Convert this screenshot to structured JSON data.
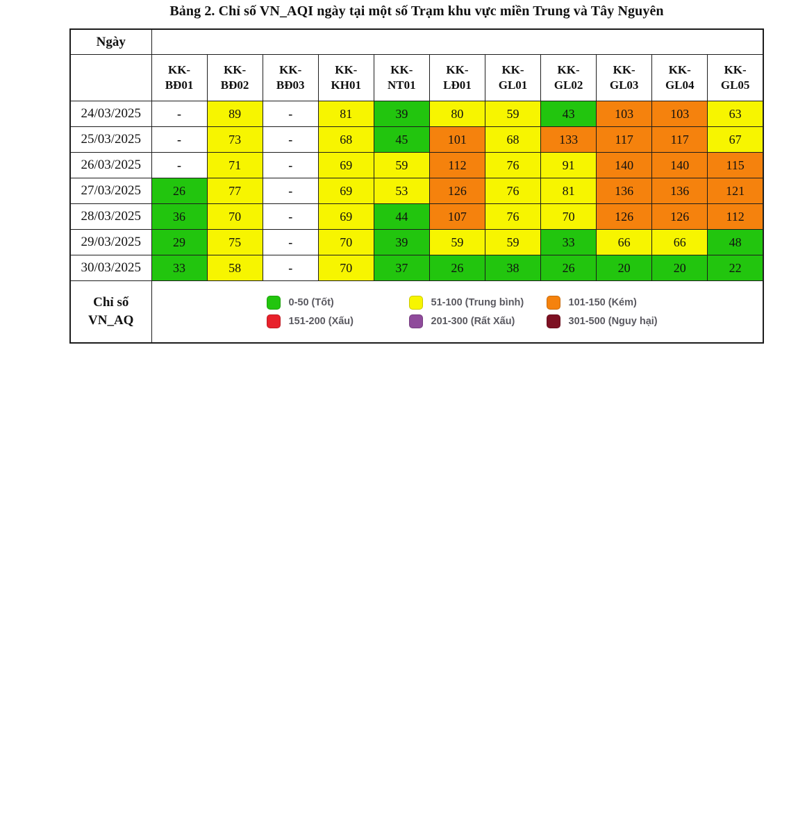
{
  "title": "Bảng 2. Chỉ số VN_AQI ngày tại một số Trạm khu vực miền Trung và Tây Nguyên",
  "header": {
    "date_label": "Ngày"
  },
  "stations": [
    "KK-\nBĐ01",
    "KK-\nBĐ02",
    "KK-\nBĐ03",
    "KK-\nKH01",
    "KK-\nNT01",
    "KK-\nLĐ01",
    "KK-\nGL01",
    "KK-\nGL02",
    "KK-\nGL03",
    "KK-\nGL04",
    "KK-\nGL05"
  ],
  "rows": [
    {
      "date": "24/03/2025",
      "cells": [
        {
          "v": "-",
          "c": "none"
        },
        {
          "v": "89",
          "c": "moderate"
        },
        {
          "v": "-",
          "c": "none"
        },
        {
          "v": "81",
          "c": "moderate"
        },
        {
          "v": "39",
          "c": "good"
        },
        {
          "v": "80",
          "c": "moderate"
        },
        {
          "v": "59",
          "c": "moderate"
        },
        {
          "v": "43",
          "c": "good"
        },
        {
          "v": "103",
          "c": "poor"
        },
        {
          "v": "103",
          "c": "poor"
        },
        {
          "v": "63",
          "c": "moderate"
        }
      ]
    },
    {
      "date": "25/03/2025",
      "cells": [
        {
          "v": "-",
          "c": "none"
        },
        {
          "v": "73",
          "c": "moderate"
        },
        {
          "v": "-",
          "c": "none"
        },
        {
          "v": "68",
          "c": "moderate"
        },
        {
          "v": "45",
          "c": "good"
        },
        {
          "v": "101",
          "c": "poor"
        },
        {
          "v": "68",
          "c": "moderate"
        },
        {
          "v": "133",
          "c": "poor"
        },
        {
          "v": "117",
          "c": "poor"
        },
        {
          "v": "117",
          "c": "poor"
        },
        {
          "v": "67",
          "c": "moderate"
        }
      ]
    },
    {
      "date": "26/03/2025",
      "cells": [
        {
          "v": "-",
          "c": "none"
        },
        {
          "v": "71",
          "c": "moderate"
        },
        {
          "v": "-",
          "c": "none"
        },
        {
          "v": "69",
          "c": "moderate"
        },
        {
          "v": "59",
          "c": "moderate"
        },
        {
          "v": "112",
          "c": "poor"
        },
        {
          "v": "76",
          "c": "moderate"
        },
        {
          "v": "91",
          "c": "moderate"
        },
        {
          "v": "140",
          "c": "poor"
        },
        {
          "v": "140",
          "c": "poor"
        },
        {
          "v": "115",
          "c": "poor"
        }
      ]
    },
    {
      "date": "27/03/2025",
      "cells": [
        {
          "v": "26",
          "c": "good"
        },
        {
          "v": "77",
          "c": "moderate"
        },
        {
          "v": "-",
          "c": "none"
        },
        {
          "v": "69",
          "c": "moderate"
        },
        {
          "v": "53",
          "c": "moderate"
        },
        {
          "v": "126",
          "c": "poor"
        },
        {
          "v": "76",
          "c": "moderate"
        },
        {
          "v": "81",
          "c": "moderate"
        },
        {
          "v": "136",
          "c": "poor"
        },
        {
          "v": "136",
          "c": "poor"
        },
        {
          "v": "121",
          "c": "poor"
        }
      ]
    },
    {
      "date": "28/03/2025",
      "cells": [
        {
          "v": "36",
          "c": "good"
        },
        {
          "v": "70",
          "c": "moderate"
        },
        {
          "v": "-",
          "c": "none"
        },
        {
          "v": "69",
          "c": "moderate"
        },
        {
          "v": "44",
          "c": "good"
        },
        {
          "v": "107",
          "c": "poor"
        },
        {
          "v": "76",
          "c": "moderate"
        },
        {
          "v": "70",
          "c": "moderate"
        },
        {
          "v": "126",
          "c": "poor"
        },
        {
          "v": "126",
          "c": "poor"
        },
        {
          "v": "112",
          "c": "poor"
        }
      ]
    },
    {
      "date": "29/03/2025",
      "cells": [
        {
          "v": "29",
          "c": "good"
        },
        {
          "v": "75",
          "c": "moderate"
        },
        {
          "v": "-",
          "c": "none"
        },
        {
          "v": "70",
          "c": "moderate"
        },
        {
          "v": "39",
          "c": "good"
        },
        {
          "v": "59",
          "c": "moderate"
        },
        {
          "v": "59",
          "c": "moderate"
        },
        {
          "v": "33",
          "c": "good"
        },
        {
          "v": "66",
          "c": "moderate"
        },
        {
          "v": "66",
          "c": "moderate"
        },
        {
          "v": "48",
          "c": "good"
        }
      ]
    },
    {
      "date": "30/03/2025",
      "cells": [
        {
          "v": "33",
          "c": "good"
        },
        {
          "v": "58",
          "c": "moderate"
        },
        {
          "v": "-",
          "c": "none"
        },
        {
          "v": "70",
          "c": "moderate"
        },
        {
          "v": "37",
          "c": "good"
        },
        {
          "v": "26",
          "c": "good"
        },
        {
          "v": "38",
          "c": "good"
        },
        {
          "v": "26",
          "c": "good"
        },
        {
          "v": "20",
          "c": "good"
        },
        {
          "v": "20",
          "c": "good"
        },
        {
          "v": "22",
          "c": "good"
        }
      ]
    }
  ],
  "legend": {
    "label": "Chỉ số\nVN_AQ",
    "items": [
      {
        "color": "good",
        "label": "0-50 (Tốt)"
      },
      {
        "color": "moderate",
        "label": "51-100 (Trung bình)"
      },
      {
        "color": "poor",
        "label": "101-150 (Kém)"
      },
      {
        "color": "bad",
        "label": "151-200 (Xấu)"
      },
      {
        "color": "very_bad",
        "label": "201-300 (Rất Xấu)"
      },
      {
        "color": "hazardous",
        "label": "301-500 (Nguy hại)"
      }
    ]
  },
  "colors": {
    "good": "#22c50e",
    "moderate": "#f7f500",
    "poor": "#f5820d",
    "bad": "#e8212b",
    "very_bad": "#8f4b9b",
    "hazardous": "#7e1123",
    "none": "#ffffff"
  }
}
